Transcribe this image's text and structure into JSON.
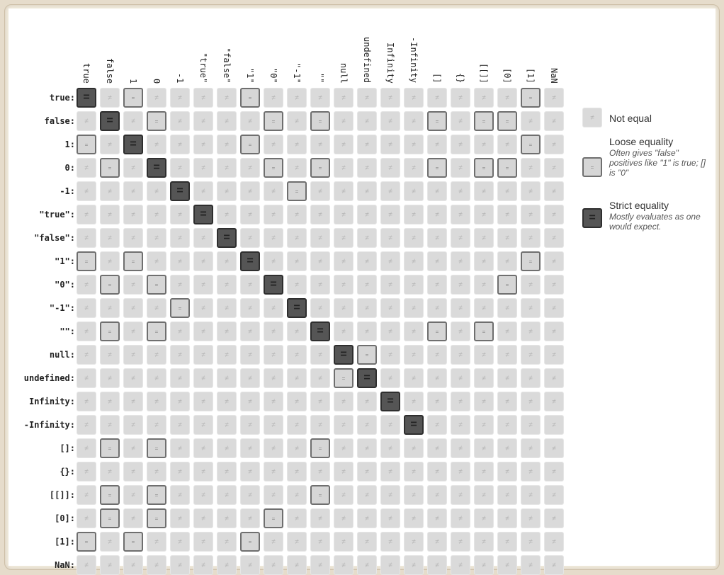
{
  "labels": [
    "true",
    "false",
    "1",
    "0",
    "-1",
    "\"true\"",
    "\"false\"",
    "\"1\"",
    "\"0\"",
    "\"-1\"",
    "\"\"",
    "null",
    "undefined",
    "Infinity",
    "-Infinity",
    "[]",
    "{}",
    "[[]]",
    "[0]",
    "[1]",
    "NaN"
  ],
  "row_label_suffix": ":",
  "symbols": {
    "not_equal": "≠",
    "equal": "="
  },
  "legend": {
    "not_equal": {
      "title": "Not equal",
      "description": ""
    },
    "loose": {
      "title": "Loose equality",
      "description": "Often gives \"false\" positives like \"1\" is true; [] is \"0\""
    },
    "strict": {
      "title": "Strict equality",
      "description": "Mostly evaluates as one would expect."
    }
  },
  "colors": {
    "not_equal": "#dadada",
    "loose": "#d6d6d6",
    "strict": "#555555",
    "border_loose": "#6f6f6f",
    "border_strict": "#2e2e2e"
  },
  "matrix": [
    "SNLNNNNLNNNNNNNNNNNLN",
    "NSNLNNNNLNLNNNNLNLLNN",
    "LNSNNNNLNNNNNNNNNNNLN",
    "NLNSNNNNLNLNNNNLNLLNN",
    "NNNNSNNNNLNNNNNNNNNNN",
    "NNNNNSNNNNNNNNNNNNNNN",
    "NNNNNNSNNNNNNNNNNNNNN",
    "LNLNNNNSNNNNNNNNNNNLN",
    "NLNLNNNNSNNNNNNNNNLNN",
    "NNNNLNNNNSNNNNNNNNNNN",
    "NLNLNNNNNNSNNNNLNLNNN",
    "NNNNNNNNNNNSLNNNNNNNN",
    "NNNNNNNNNNNLSNNNNNNNN",
    "NNNNNNNNNNNNNSNNNNNNN",
    "NNNNNNNNNNNNNNSNNNNNN",
    "NLNLNNNNNNLNNNNNNNNNN",
    "NNNNNNNNNNNNNNNNNNNNN",
    "NLNLNNNNNNLNNNNNNNNNN",
    "NLNLNNNNLNNNNNNNNNNNN",
    "LNLNNNNLNNNNNNNNNNNNN",
    "NNNNNNNNNNNNNNNNNNNNN"
  ]
}
